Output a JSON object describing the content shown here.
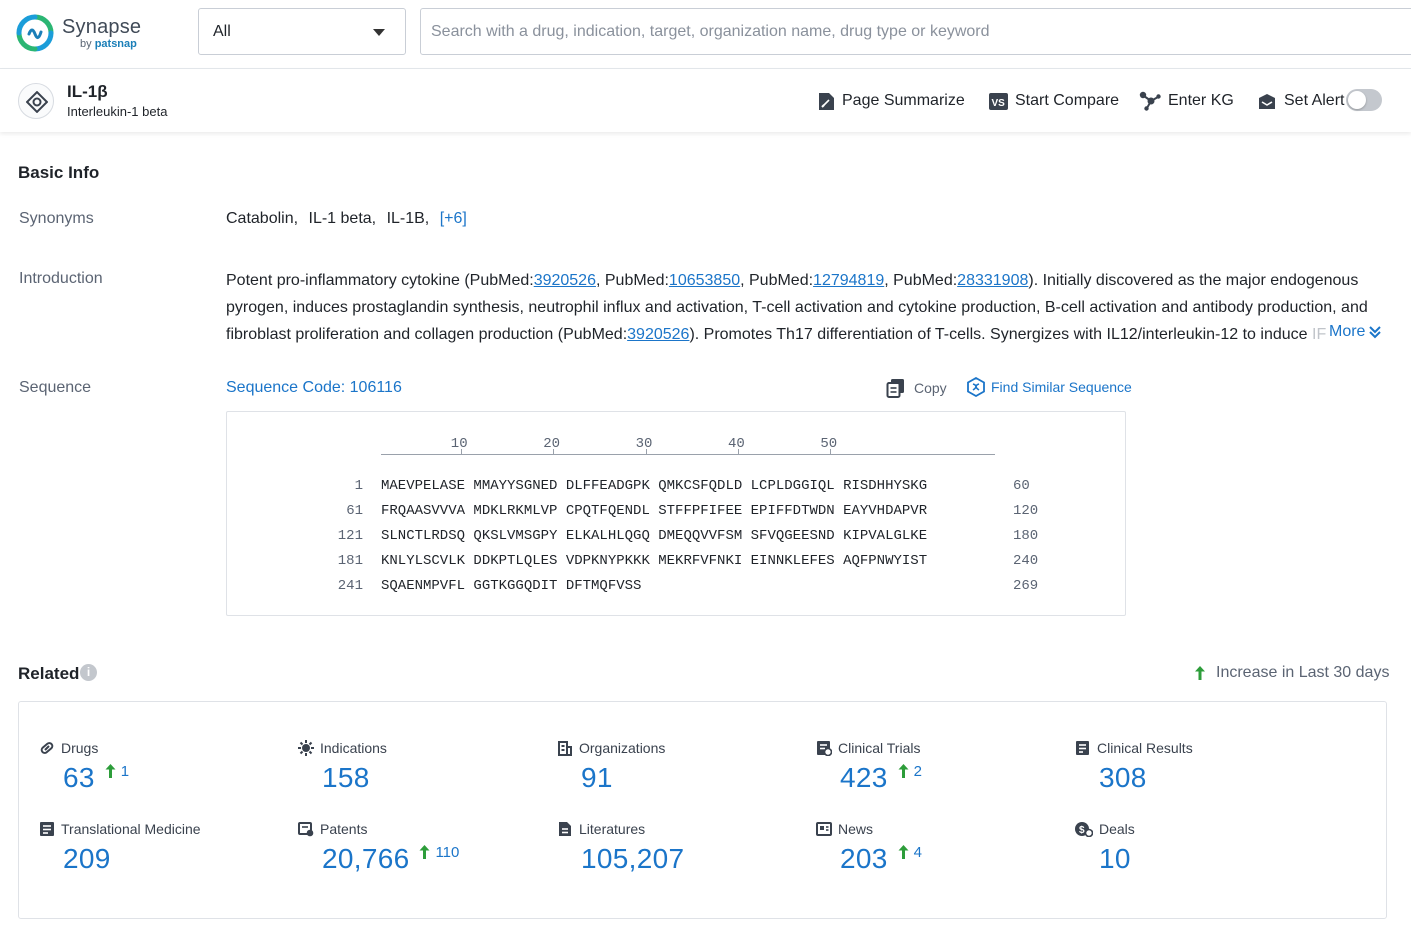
{
  "brand": {
    "name": "Synapse",
    "by_prefix": "by",
    "by_name": "patsnap"
  },
  "search": {
    "scope_value": "All",
    "placeholder": "Search with a drug, indication, target, organization name, drug type or keyword"
  },
  "target": {
    "name": "IL-1β",
    "full_name": "Interleukin-1 beta"
  },
  "actions": {
    "page_summarize": "Page Summarize",
    "start_compare": "Start Compare",
    "enter_kg": "Enter KG",
    "set_alert": "Set Alert",
    "alert_enabled": false
  },
  "basic_info": {
    "title": "Basic Info",
    "synonyms_label": "Synonyms",
    "synonyms": [
      "Catabolin,",
      "IL-1 beta,",
      "IL-1B,"
    ],
    "synonyms_more": "[+6]",
    "introduction_label": "Introduction",
    "intro": {
      "l1_a": "Potent pro-inflammatory cytokine (PubMed:",
      "pm1": "3920526",
      "l1_b": ", PubMed:",
      "pm2": "10653850",
      "l1_c": ", PubMed:",
      "pm3": "12794819",
      "l1_d": ", PubMed:",
      "pm4": "28331908",
      "l1_e": "). Initially discovered as the major endogenous",
      "l2": "pyrogen, induces prostaglandin synthesis, neutrophil influx and activation, T-cell activation and cytokine production, B-cell activation and antibody production, and",
      "l3_a": "fibroblast proliferation and collagen production (PubMed:",
      "pm5": "3920526",
      "l3_b": "). Promotes Th17 differentiation of T-cells. Synergizes with IL12/interleukin-12 to induce ",
      "l3_fade": "IFNG",
      "more": "More"
    },
    "sequence_label": "Sequence",
    "sequence_code": "Sequence Code: 106116",
    "copy": "Copy",
    "find_similar": "Find Similar Sequence"
  },
  "sequence": {
    "ruler": [
      "10",
      "20",
      "30",
      "40",
      "50"
    ],
    "rows": [
      {
        "start": "1",
        "data": "MAEVPELASE MMAYYSGNED DLFFEADGPK QMKCSFQDLD LCPLDGGIQL RISDHHYSKG",
        "end": "60"
      },
      {
        "start": "61",
        "data": "FRQAASVVVA MDKLRKMLVP CPQTFQENDL STFFPFIFEE EPIFFDTWDN EAYVHDAPVR",
        "end": "120"
      },
      {
        "start": "121",
        "data": "SLNCTLRDSQ QKSLVMSGPY ELKALHLQGQ DMEQQVVFSM SFVQGEESND KIPVALGLKE",
        "end": "180"
      },
      {
        "start": "181",
        "data": "KNLYLSCVLK DDKPTLQLES VDPKNYPKKK MEKRFVFNKI EINNKLEFES AQFPNWYIST",
        "end": "240"
      },
      {
        "start": "241",
        "data": "SQAENMPVFL GGTKGGQDIT DFTMQFVSS",
        "end": "269"
      }
    ]
  },
  "related": {
    "title": "Related",
    "info_glyph": "i",
    "increase_note": "Increase in Last 30 days",
    "stats": [
      {
        "label": "Drugs",
        "value": "63",
        "increase": "1"
      },
      {
        "label": "Indications",
        "value": "158",
        "increase": ""
      },
      {
        "label": "Organizations",
        "value": "91",
        "increase": ""
      },
      {
        "label": "Clinical Trials",
        "value": "423",
        "increase": "2"
      },
      {
        "label": "Clinical Results",
        "value": "308",
        "increase": ""
      },
      {
        "label": "Translational Medicine",
        "value": "209",
        "increase": ""
      },
      {
        "label": "Patents",
        "value": "20,766",
        "increase": "110"
      },
      {
        "label": "Literatures",
        "value": "105,207",
        "increase": ""
      },
      {
        "label": "News",
        "value": "203",
        "increase": "4"
      },
      {
        "label": "Deals",
        "value": "10",
        "increase": ""
      }
    ]
  },
  "colors": {
    "link": "#1b75c9",
    "increase_arrow": "#2d9d3a",
    "brand_green": "#2bb673",
    "brand_blue": "#1b7fb8"
  }
}
